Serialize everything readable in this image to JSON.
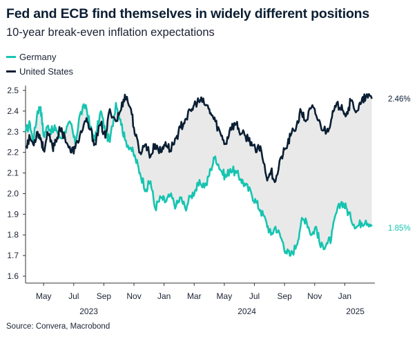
{
  "title": "Fed and ECB find themselves in widely different positions",
  "subtitle": "10-year break-even inflation expectations",
  "source": "Source: Convera, Macrobond",
  "chart_data": {
    "type": "line",
    "title": "Fed and ECB find themselves in widely different positions",
    "subtitle": "10-year break-even inflation expectations",
    "xlabel": "",
    "ylabel": "",
    "ylim": [
      1.6,
      2.5
    ],
    "yticks": [
      "2.5",
      "2.4",
      "2.3",
      "2.2",
      "2.1",
      "2.0",
      "1.9",
      "1.8",
      "1.7",
      "1.6"
    ],
    "xlim": [
      0,
      23.2
    ],
    "month_ticks": [
      {
        "label": "May",
        "x": 1.2
      },
      {
        "label": "Jul",
        "x": 3.2
      },
      {
        "label": "Sep",
        "x": 5.2
      },
      {
        "label": "Nov",
        "x": 7.2
      },
      {
        "label": "Jan",
        "x": 9.2
      },
      {
        "label": "Mar",
        "x": 11.2
      },
      {
        "label": "May",
        "x": 13.2
      },
      {
        "label": "Jul",
        "x": 15.2
      },
      {
        "label": "Sep",
        "x": 17.2
      },
      {
        "label": "Nov",
        "x": 19.2
      },
      {
        "label": "Jan",
        "x": 21.2
      }
    ],
    "year_ticks": [
      {
        "label": "2023",
        "x": 4.2
      },
      {
        "label": "2024",
        "x": 14.7
      },
      {
        "label": "2025",
        "x": 21.9
      }
    ],
    "x_unit": "months since start of April 2023",
    "legend_position": "top-left",
    "series": [
      {
        "name": "Germany",
        "color": "#16c4b0",
        "end_label": "1.85%",
        "x": [
          0,
          0.3,
          0.5,
          0.8,
          1.0,
          1.2,
          1.5,
          1.8,
          2.0,
          2.3,
          2.6,
          3.0,
          3.3,
          3.6,
          4.0,
          4.3,
          4.6,
          5.0,
          5.3,
          5.6,
          6.0,
          6.3,
          6.6,
          7.0,
          7.3,
          7.6,
          8.0,
          8.3,
          8.6,
          9.0,
          9.3,
          9.6,
          10.0,
          10.3,
          10.6,
          11.0,
          11.3,
          11.6,
          12.0,
          12.3,
          12.6,
          13.0,
          13.3,
          13.6,
          14.0,
          14.3,
          14.6,
          15.0,
          15.3,
          15.6,
          16.0,
          16.3,
          16.6,
          17.0,
          17.3,
          17.6,
          18.0,
          18.3,
          18.6,
          19.0,
          19.3,
          19.6,
          20.0,
          20.3,
          20.6,
          21.0,
          21.3,
          21.6,
          22.0,
          22.3,
          22.6,
          23.0
        ],
        "values": [
          2.3,
          2.34,
          2.25,
          2.4,
          2.42,
          2.28,
          2.33,
          2.3,
          2.32,
          2.27,
          2.3,
          2.34,
          2.24,
          2.38,
          2.43,
          2.32,
          2.26,
          2.4,
          2.3,
          2.25,
          2.44,
          2.36,
          2.26,
          2.22,
          2.17,
          2.1,
          2.02,
          2.06,
          1.93,
          1.98,
          1.96,
          1.99,
          1.94,
          1.98,
          1.93,
          1.99,
          2.02,
          2.05,
          2.04,
          2.12,
          2.18,
          2.11,
          2.08,
          2.12,
          2.1,
          2.07,
          2.04,
          2.0,
          1.96,
          1.92,
          1.86,
          1.8,
          1.84,
          1.78,
          1.72,
          1.7,
          1.75,
          1.86,
          1.88,
          1.8,
          1.84,
          1.74,
          1.76,
          1.78,
          1.9,
          1.96,
          1.93,
          1.88,
          1.84,
          1.86,
          1.87,
          1.85
        ]
      },
      {
        "name": "United States",
        "color": "#0b1e33",
        "end_label": "2.46%",
        "x": [
          0,
          0.3,
          0.5,
          0.8,
          1.0,
          1.2,
          1.5,
          1.8,
          2.0,
          2.3,
          2.6,
          3.0,
          3.3,
          3.6,
          4.0,
          4.3,
          4.6,
          5.0,
          5.3,
          5.6,
          6.0,
          6.3,
          6.6,
          7.0,
          7.3,
          7.6,
          8.0,
          8.3,
          8.6,
          9.0,
          9.3,
          9.6,
          10.0,
          10.3,
          10.6,
          11.0,
          11.3,
          11.6,
          12.0,
          12.3,
          12.6,
          13.0,
          13.3,
          13.6,
          14.0,
          14.3,
          14.6,
          15.0,
          15.3,
          15.6,
          16.0,
          16.3,
          16.6,
          17.0,
          17.3,
          17.6,
          18.0,
          18.3,
          18.6,
          19.0,
          19.3,
          19.6,
          20.0,
          20.3,
          20.6,
          21.0,
          21.3,
          21.6,
          22.0,
          22.3,
          22.6,
          23.0
        ],
        "values": [
          2.23,
          2.27,
          2.24,
          2.3,
          2.27,
          2.21,
          2.29,
          2.22,
          2.26,
          2.31,
          2.28,
          2.2,
          2.22,
          2.28,
          2.35,
          2.31,
          2.24,
          2.34,
          2.27,
          2.41,
          2.35,
          2.4,
          2.48,
          2.41,
          2.28,
          2.2,
          2.24,
          2.18,
          2.24,
          2.2,
          2.25,
          2.21,
          2.27,
          2.32,
          2.36,
          2.4,
          2.44,
          2.45,
          2.43,
          2.39,
          2.35,
          2.28,
          2.24,
          2.32,
          2.34,
          2.29,
          2.28,
          2.25,
          2.2,
          2.23,
          2.08,
          2.11,
          2.06,
          2.18,
          2.22,
          2.28,
          2.33,
          2.4,
          2.35,
          2.42,
          2.38,
          2.33,
          2.3,
          2.36,
          2.42,
          2.43,
          2.38,
          2.45,
          2.4,
          2.44,
          2.47,
          2.46
        ]
      }
    ]
  }
}
